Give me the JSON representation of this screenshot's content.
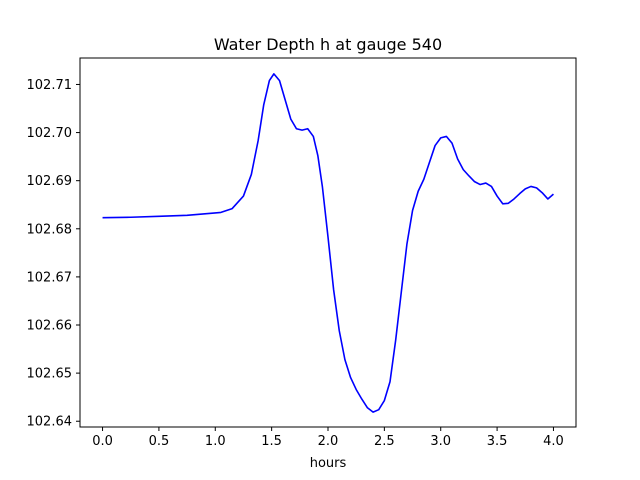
{
  "chart_data": {
    "type": "line",
    "title": "Water Depth h at gauge 540",
    "xlabel": "hours",
    "ylabel": "",
    "xlim": [
      -0.2,
      4.2
    ],
    "ylim": [
      102.6388,
      102.7155
    ],
    "x_ticks": [
      0.0,
      0.5,
      1.0,
      1.5,
      2.0,
      2.5,
      3.0,
      3.5,
      4.0
    ],
    "x_tick_labels": [
      "0.0",
      "0.5",
      "1.0",
      "1.5",
      "2.0",
      "2.5",
      "3.0",
      "3.5",
      "4.0"
    ],
    "y_ticks": [
      102.64,
      102.65,
      102.66,
      102.67,
      102.68,
      102.69,
      102.7,
      102.71
    ],
    "y_tick_labels": [
      "102.64",
      "102.65",
      "102.66",
      "102.67",
      "102.68",
      "102.69",
      "102.70",
      "102.71"
    ],
    "grid": false,
    "legend": "none",
    "colors": {
      "line": "#0000ff",
      "axes": "#000000",
      "background": "#ffffff"
    },
    "series": [
      {
        "x": [
          0.0,
          0.25,
          0.5,
          0.75,
          1.0,
          1.05,
          1.15,
          1.25,
          1.32,
          1.38,
          1.43,
          1.48,
          1.52,
          1.57,
          1.62,
          1.67,
          1.72,
          1.77,
          1.82,
          1.87,
          1.91,
          1.95,
          2.0,
          2.05,
          2.1,
          2.15,
          2.2,
          2.25,
          2.3,
          2.35,
          2.4,
          2.45,
          2.5,
          2.55,
          2.6,
          2.65,
          2.7,
          2.75,
          2.8,
          2.85,
          2.9,
          2.95,
          3.0,
          3.05,
          3.1,
          3.15,
          3.2,
          3.25,
          3.3,
          3.35,
          3.4,
          3.45,
          3.5,
          3.55,
          3.6,
          3.65,
          3.7,
          3.75,
          3.8,
          3.85,
          3.9,
          3.95,
          4.0
        ],
        "y": [
          102.6823,
          102.6824,
          102.6826,
          102.6828,
          102.6833,
          102.6834,
          102.6842,
          102.6868,
          102.6913,
          102.6983,
          102.7058,
          102.7108,
          102.7122,
          102.7108,
          102.7068,
          102.7028,
          102.7008,
          102.7005,
          102.7008,
          102.6992,
          102.6952,
          102.6888,
          102.6783,
          102.6673,
          102.6588,
          102.6528,
          102.6491,
          102.6466,
          102.6446,
          102.6428,
          102.6419,
          102.6424,
          102.6443,
          102.6482,
          102.6568,
          102.6668,
          102.6768,
          102.6838,
          102.6878,
          102.6903,
          102.6938,
          102.6973,
          102.6989,
          102.6992,
          102.6978,
          102.6945,
          102.6923,
          102.691,
          102.6898,
          102.6892,
          102.6895,
          102.6888,
          102.6868,
          102.6852,
          102.6853,
          102.6862,
          102.6873,
          102.6883,
          102.6888,
          102.6885,
          102.6875,
          102.6862,
          102.6872
        ]
      }
    ]
  }
}
